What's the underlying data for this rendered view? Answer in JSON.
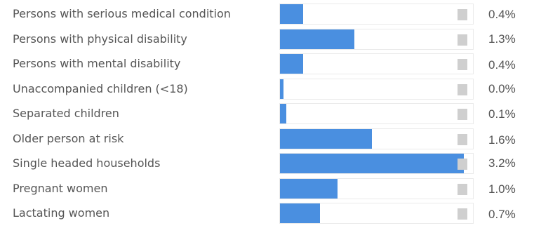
{
  "chart_data": {
    "type": "bar",
    "orientation": "horizontal",
    "title": "",
    "xlabel": "",
    "ylabel": "",
    "xlim": [
      0,
      3.2
    ],
    "grid": false,
    "legend": "none",
    "value_unit": "%",
    "bar_color": "#4a8fe0",
    "track_color": "#ffffff",
    "track_border_color": "#eaeaea",
    "handle_color": "#cfcfcf",
    "categories": [
      "Persons with serious medical condition",
      "Persons with physical disability",
      "Persons with mental disability",
      "Unaccompanied children (<18)",
      "Separated children",
      "Older person at risk",
      "Single headed households",
      "Pregnant women",
      "Lactating women"
    ],
    "values": [
      0.4,
      1.3,
      0.4,
      0.0,
      0.1,
      1.6,
      3.2,
      1.0,
      0.7
    ],
    "value_labels": [
      "0.4%",
      "1.3%",
      "0.4%",
      "0.0%",
      "0.1%",
      "1.6%",
      "3.2%",
      "1.0%",
      "0.7%"
    ]
  }
}
